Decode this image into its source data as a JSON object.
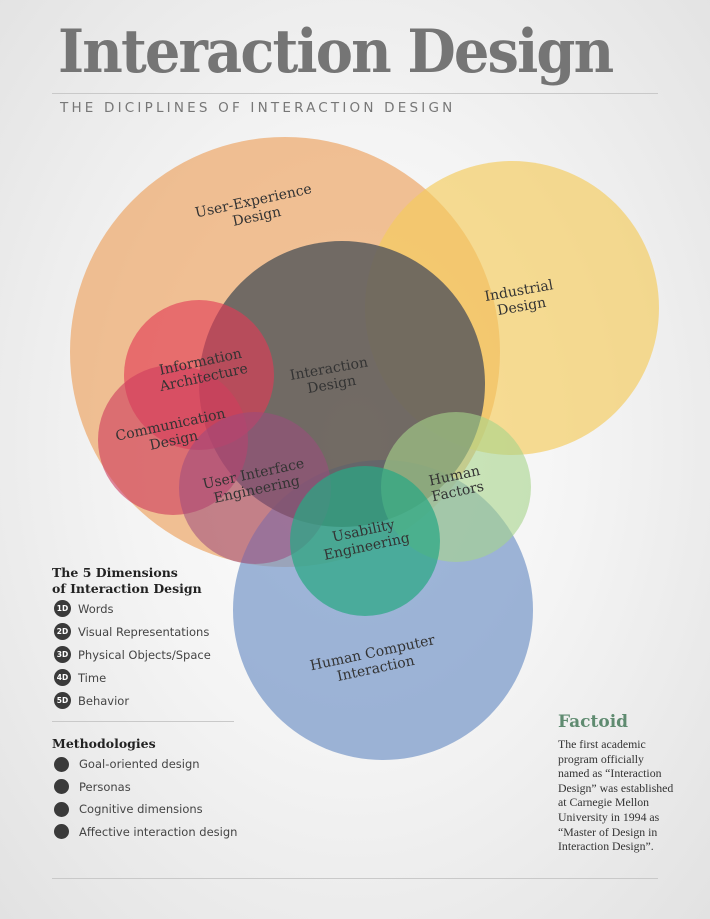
{
  "header": {
    "title": "Interaction Design",
    "subtitle": "THE DICIPLINES OF INTERACTION DESIGN"
  },
  "diagram": {
    "disciplines": [
      {
        "key": "ux",
        "lines": [
          "User-Experience",
          "Design"
        ],
        "color": "#eda35f"
      },
      {
        "key": "industrial",
        "lines": [
          "Industrial",
          "Design"
        ],
        "color": "#f4cb5c"
      },
      {
        "key": "hci",
        "lines": [
          "Human Computer",
          "Interaction"
        ],
        "color": "#7898c9"
      },
      {
        "key": "ixd",
        "lines": [
          "Interaction",
          "Design"
        ],
        "color": "#5c5c5c"
      },
      {
        "key": "hf",
        "lines": [
          "Human",
          "Factors"
        ],
        "color": "#a6d38a"
      },
      {
        "key": "ia",
        "lines": [
          "Information",
          "Architecture"
        ],
        "color": "#e23a55"
      },
      {
        "key": "cd",
        "lines": [
          "Communication",
          "Design"
        ],
        "color": "#cf3e5e"
      },
      {
        "key": "uie",
        "lines": [
          "User Interface",
          "Engineering"
        ],
        "color": "#9d4a7e"
      },
      {
        "key": "ue",
        "lines": [
          "Usability",
          "Engineering"
        ],
        "color": "#2aa883"
      }
    ]
  },
  "dimensions": {
    "title_lines": [
      "The 5 Dimensions",
      "of Interaction Design"
    ],
    "items": [
      {
        "badge": "1D",
        "label": "Words"
      },
      {
        "badge": "2D",
        "label": "Visual Representations"
      },
      {
        "badge": "3D",
        "label": "Physical Objects/Space"
      },
      {
        "badge": "4D",
        "label": "Time"
      },
      {
        "badge": "5D",
        "label": "Behavior"
      }
    ]
  },
  "methodologies": {
    "title": "Methodologies",
    "items": [
      "Goal-oriented design",
      "Personas",
      "Cognitive dimensions",
      "Affective interaction design"
    ]
  },
  "factoid": {
    "title": "Factoid",
    "text": "The first academic program officially named as “Interaction Design” was established at Carnegie Mellon University in 1994 as “Master of Design in Interaction Design”."
  }
}
